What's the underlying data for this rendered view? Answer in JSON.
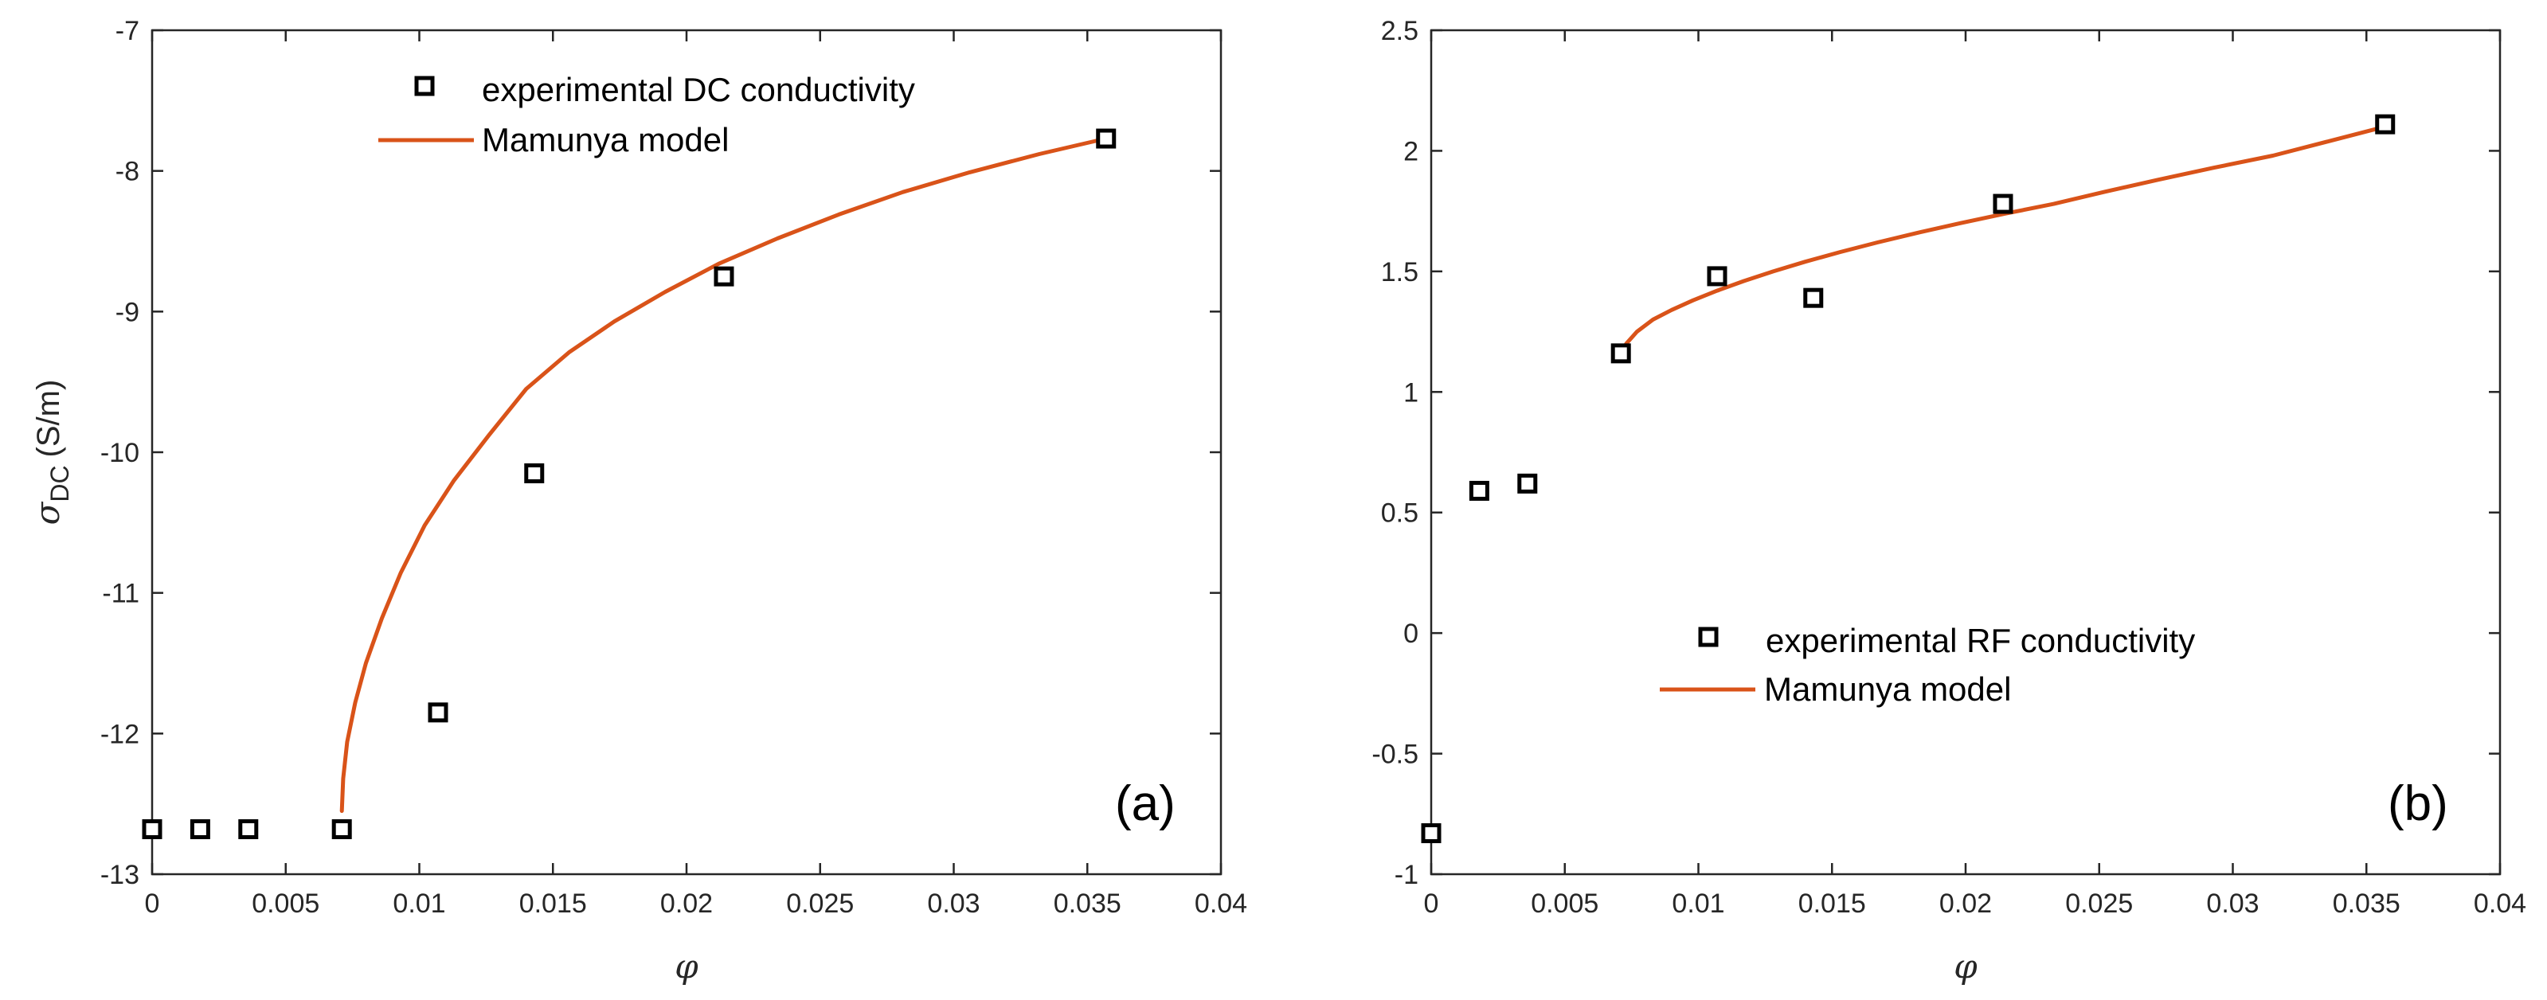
{
  "chart_data": [
    {
      "type": "scatter",
      "panel_label": "(a)",
      "xlabel": "φ",
      "ylabel": {
        "symbol": "σ",
        "subscript": "DC",
        "unit": "(S/m)"
      },
      "xlim": [
        0,
        0.04
      ],
      "ylim": [
        -13,
        -7
      ],
      "xticks": [
        "0",
        "0.005",
        "0.01",
        "0.015",
        "0.02",
        "0.025",
        "0.03",
        "0.035",
        "0.04"
      ],
      "yticks": [
        "-7",
        "-8",
        "-9",
        "-10",
        "-11",
        "-12",
        "-13"
      ],
      "legend_position": "top-center",
      "series": [
        {
          "name": "experimental DC conductivity",
          "kind": "markers",
          "marker": "square",
          "color": "#000000",
          "x": [
            0,
            0.0018,
            0.0036,
            0.0071,
            0.0107,
            0.0143,
            0.0214,
            0.0357
          ],
          "y": [
            -12.68,
            -12.68,
            -12.68,
            -12.68,
            -11.85,
            -10.15,
            -8.75,
            -7.77
          ]
        },
        {
          "name": "Mamunya model",
          "kind": "line",
          "color": "#D95319",
          "x": [
            0.0071,
            0.00715,
            0.0073,
            0.0076,
            0.008,
            0.0086,
            0.0093,
            0.0102,
            0.0113,
            0.0126,
            0.014,
            0.0156,
            0.0173,
            0.0192,
            0.0212,
            0.0234,
            0.0257,
            0.0281,
            0.0306,
            0.0332,
            0.0357
          ],
          "y": [
            -12.55,
            -12.32,
            -12.06,
            -11.78,
            -11.5,
            -11.18,
            -10.86,
            -10.52,
            -10.2,
            -9.88,
            -9.55,
            -9.29,
            -9.07,
            -8.86,
            -8.66,
            -8.48,
            -8.31,
            -8.15,
            -8.01,
            -7.88,
            -7.77
          ]
        }
      ]
    },
    {
      "type": "scatter",
      "panel_label": "(b)",
      "xlabel": "φ",
      "ylabel": null,
      "xlim": [
        0,
        0.04
      ],
      "ylim": [
        -1,
        2.5
      ],
      "xticks": [
        "0",
        "0.005",
        "0.01",
        "0.015",
        "0.02",
        "0.025",
        "0.03",
        "0.035",
        "0.04"
      ],
      "yticks": [
        "2.5",
        "2",
        "1.5",
        "1",
        "0.5",
        "0",
        "-0.5",
        "-1"
      ],
      "legend_position": "bottom-center",
      "series": [
        {
          "name": "experimental RF conductivity",
          "kind": "markers",
          "marker": "square",
          "color": "#000000",
          "x": [
            0,
            0.0018,
            0.0036,
            0.0071,
            0.0107,
            0.0143,
            0.0214,
            0.0357
          ],
          "y": [
            -0.83,
            0.59,
            0.62,
            1.16,
            1.48,
            1.39,
            1.78,
            2.11
          ]
        },
        {
          "name": "Mamunya model",
          "kind": "line",
          "color": "#D95319",
          "x": [
            0.0071,
            0.0073,
            0.0077,
            0.0083,
            0.009,
            0.0098,
            0.0107,
            0.0117,
            0.0128,
            0.014,
            0.0153,
            0.0167,
            0.0182,
            0.0198,
            0.0215,
            0.0233,
            0.0252,
            0.0272,
            0.0293,
            0.0315,
            0.0336,
            0.0357
          ],
          "y": [
            1.16,
            1.2,
            1.25,
            1.3,
            1.34,
            1.38,
            1.42,
            1.46,
            1.5,
            1.54,
            1.58,
            1.62,
            1.66,
            1.7,
            1.74,
            1.78,
            1.83,
            1.88,
            1.93,
            1.98,
            2.04,
            2.1
          ]
        }
      ]
    }
  ]
}
